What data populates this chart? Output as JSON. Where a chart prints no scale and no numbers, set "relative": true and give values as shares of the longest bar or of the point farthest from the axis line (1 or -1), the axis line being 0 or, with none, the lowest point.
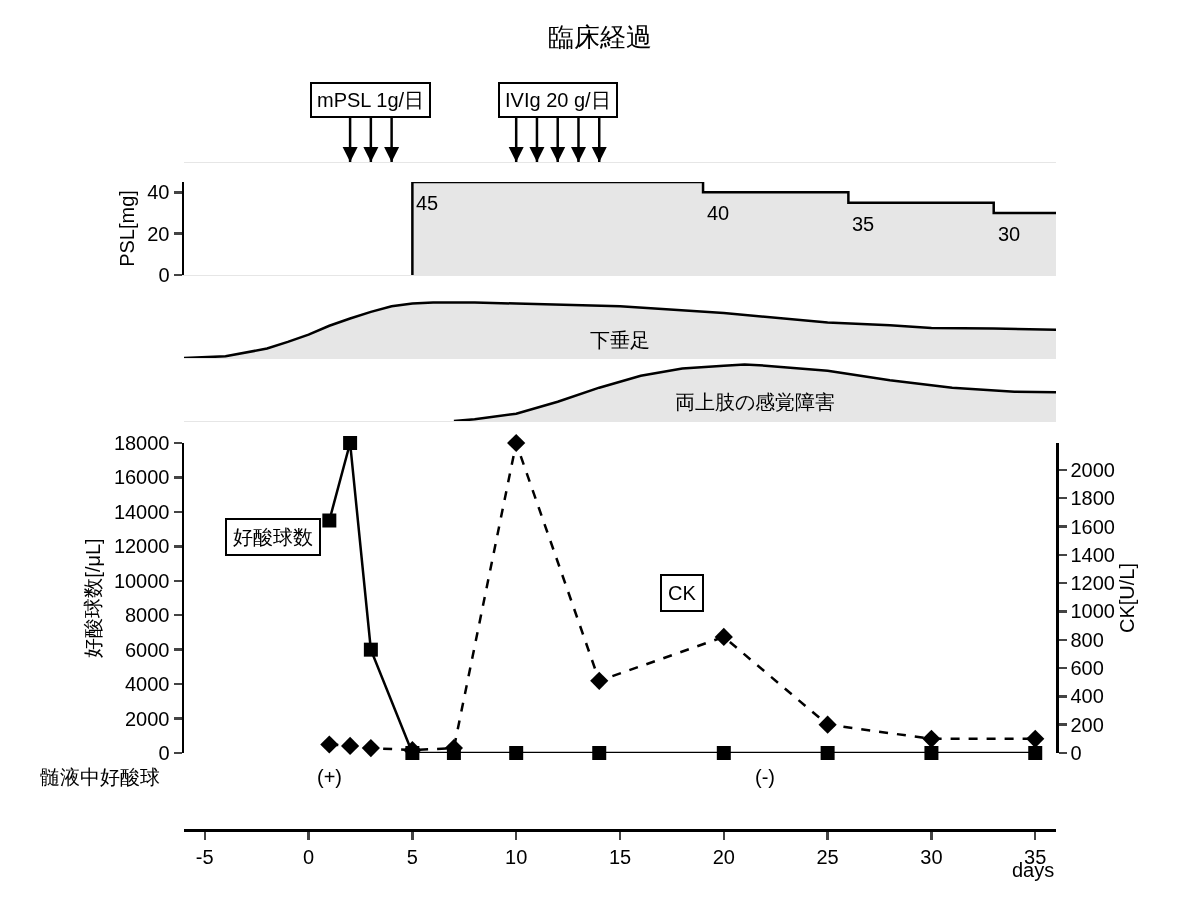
{
  "chart_data": [
    {
      "type": "bar",
      "relative": true,
      "title": "臨床経過",
      "xlim": [
        -6,
        36
      ],
      "tick_labels": false,
      "annotations": [
        "mPSL 1g/日",
        "IVIg 20 g/日"
      ],
      "series": [
        {
          "color": "#000000",
          "x": [
            2,
            3,
            4
          ],
          "values": [
            1,
            1,
            1
          ]
        },
        {
          "color": "#000000",
          "x": [
            10,
            11,
            12,
            13,
            14
          ],
          "values": [
            1,
            1,
            1,
            1,
            1
          ]
        }
      ]
    },
    {
      "type": "step",
      "xlim": [
        -6,
        36
      ],
      "ylim": [
        0,
        45
      ],
      "yticks": [
        0,
        20,
        40
      ],
      "ylabel": "PSL[mg]",
      "tick_labels": "y",
      "color": "#000000",
      "x": [
        5,
        5,
        19,
        26,
        33,
        36
      ],
      "values": [
        0,
        45,
        40,
        35,
        30,
        30
      ],
      "value_labels": [
        null,
        "45",
        "40",
        "35",
        "30",
        null
      ]
    },
    {
      "type": "area",
      "relative": true,
      "xlim": [
        -6,
        36
      ],
      "tick_labels": false,
      "series": [
        {
          "name": "下垂足",
          "color": "#000000",
          "x": [
            -6,
            -4,
            -2,
            -1,
            0,
            1,
            2,
            3,
            4,
            5,
            6,
            8,
            10,
            15,
            20,
            25,
            28,
            30,
            33,
            36
          ],
          "values": [
            0,
            0.03,
            0.17,
            0.29,
            0.42,
            0.58,
            0.71,
            0.83,
            0.93,
            0.98,
            1,
            1,
            0.98,
            0.93,
            0.81,
            0.64,
            0.59,
            0.54,
            0.53,
            0.51
          ]
        }
      ]
    },
    {
      "type": "area",
      "relative": true,
      "xlim": [
        -6,
        36
      ],
      "tick_labels": false,
      "series": [
        {
          "name": "両上肢の感覚障害",
          "color": "#000000",
          "x": [
            7,
            8,
            10,
            12,
            14,
            16,
            18,
            20,
            21,
            22,
            25,
            28,
            31,
            34,
            36
          ],
          "values": [
            0,
            0.03,
            0.13,
            0.34,
            0.59,
            0.8,
            0.93,
            0.98,
            1,
            0.98,
            0.89,
            0.72,
            0.59,
            0.52,
            0.51
          ]
        }
      ]
    },
    {
      "type": "line",
      "xlim": [
        -6,
        36
      ],
      "xticks": [
        -5,
        0,
        5,
        10,
        15,
        20,
        25,
        30,
        35
      ],
      "xlabel": "days",
      "ylabel": "好酸球数[/μL]",
      "y2label": "CK[U/L]",
      "ylim": [
        0,
        18000
      ],
      "yticks": [
        0,
        2000,
        4000,
        6000,
        8000,
        10000,
        12000,
        14000,
        16000,
        18000
      ],
      "y2lim": [
        0,
        2190
      ],
      "y2ticks": [
        0,
        200,
        400,
        600,
        800,
        1000,
        1200,
        1400,
        1600,
        1800,
        2000
      ],
      "annotations": [
        "髄液中好酸球",
        "(+)",
        "(-)"
      ],
      "series": [
        {
          "name": "好酸球数",
          "color": "#000000",
          "marker": "square",
          "line_style": "solid",
          "x": [
            1,
            2,
            3,
            5,
            7,
            10,
            14,
            20,
            25,
            30,
            35
          ],
          "values": [
            13500,
            18000,
            6000,
            0,
            0,
            0,
            0,
            0,
            0,
            0,
            0
          ]
        },
        {
          "name": "CK",
          "color": "#000000",
          "axis": "y2",
          "marker": "diamond",
          "line_style": "dashed",
          "x": [
            1,
            2,
            3,
            5,
            7,
            10,
            14,
            20,
            25,
            30,
            35
          ],
          "values": [
            60,
            50,
            35,
            20,
            35,
            2190,
            510,
            820,
            200,
            100,
            100
          ]
        }
      ]
    }
  ]
}
